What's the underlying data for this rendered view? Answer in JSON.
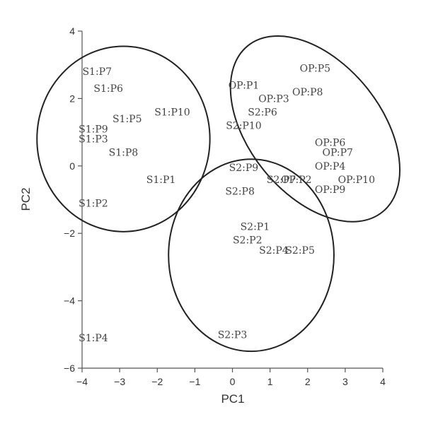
{
  "chart_data": {
    "type": "scatter",
    "title": "",
    "xlabel": "PC1",
    "ylabel": "PC2",
    "xlim": [
      -4,
      4
    ],
    "ylim": [
      -6,
      4
    ],
    "x_ticks": [
      -4,
      -3,
      -2,
      -1,
      0,
      1,
      2,
      3,
      4
    ],
    "y_ticks": [
      4,
      2,
      0,
      -2,
      -4,
      -6
    ],
    "grid": false,
    "points": [
      {
        "label": "S1:P7",
        "x": -3.6,
        "y": 2.8
      },
      {
        "label": "S1:P6",
        "x": -3.3,
        "y": 2.3
      },
      {
        "label": "S1:P10",
        "x": -1.6,
        "y": 1.6
      },
      {
        "label": "S1:P5",
        "x": -2.8,
        "y": 1.4
      },
      {
        "label": "S1:P9",
        "x": -3.7,
        "y": 1.1
      },
      {
        "label": "S1:P3",
        "x": -3.7,
        "y": 0.8
      },
      {
        "label": "S1:P8",
        "x": -2.9,
        "y": 0.4
      },
      {
        "label": "S1:P1",
        "x": -1.9,
        "y": -0.4
      },
      {
        "label": "S1:P2",
        "x": -3.7,
        "y": -1.1
      },
      {
        "label": "S1:P4",
        "x": -3.7,
        "y": -5.1
      },
      {
        "label": "OP:P5",
        "x": 2.2,
        "y": 2.9
      },
      {
        "label": "OP:P1",
        "x": 0.3,
        "y": 2.4
      },
      {
        "label": "OP:P8",
        "x": 2.0,
        "y": 2.2
      },
      {
        "label": "OP:P3",
        "x": 1.1,
        "y": 2.0
      },
      {
        "label": "S2:P6",
        "x": 0.8,
        "y": 1.6
      },
      {
        "label": "S2:P10",
        "x": 0.3,
        "y": 1.2
      },
      {
        "label": "OP:P6",
        "x": 2.6,
        "y": 0.7
      },
      {
        "label": "OP:P7",
        "x": 2.8,
        "y": 0.4
      },
      {
        "label": "OP:P4",
        "x": 2.6,
        "y": 0.0
      },
      {
        "label": "OP:P10",
        "x": 3.3,
        "y": -0.4
      },
      {
        "label": "OP:P2",
        "x": 1.7,
        "y": -0.4
      },
      {
        "label": "S2:P7",
        "x": 1.3,
        "y": -0.4
      },
      {
        "label": "OP:P9",
        "x": 2.6,
        "y": -0.7
      },
      {
        "label": "S2:P9",
        "x": 0.3,
        "y": -0.05
      },
      {
        "label": "S2:P8",
        "x": 0.2,
        "y": -0.75
      },
      {
        "label": "S2:P1",
        "x": 0.6,
        "y": -1.8
      },
      {
        "label": "S2:P2",
        "x": 0.4,
        "y": -2.2
      },
      {
        "label": "S2:P4",
        "x": 1.1,
        "y": -2.5
      },
      {
        "label": "S2:P5",
        "x": 1.8,
        "y": -2.5
      },
      {
        "label": "S2:P3",
        "x": 0.0,
        "y": -5.0
      }
    ],
    "ellipses": [
      {
        "group": "S1",
        "cx": -2.9,
        "cy": 0.8,
        "rx": 2.3,
        "ry": 2.75,
        "angle": 0
      },
      {
        "group": "OP",
        "cx": 2.2,
        "cy": 1.1,
        "rx": 3.0,
        "ry": 1.85,
        "angle": 51
      },
      {
        "group": "S2",
        "cx": 0.5,
        "cy": -2.65,
        "rx": 2.2,
        "ry": 2.85,
        "angle": 0
      }
    ]
  }
}
